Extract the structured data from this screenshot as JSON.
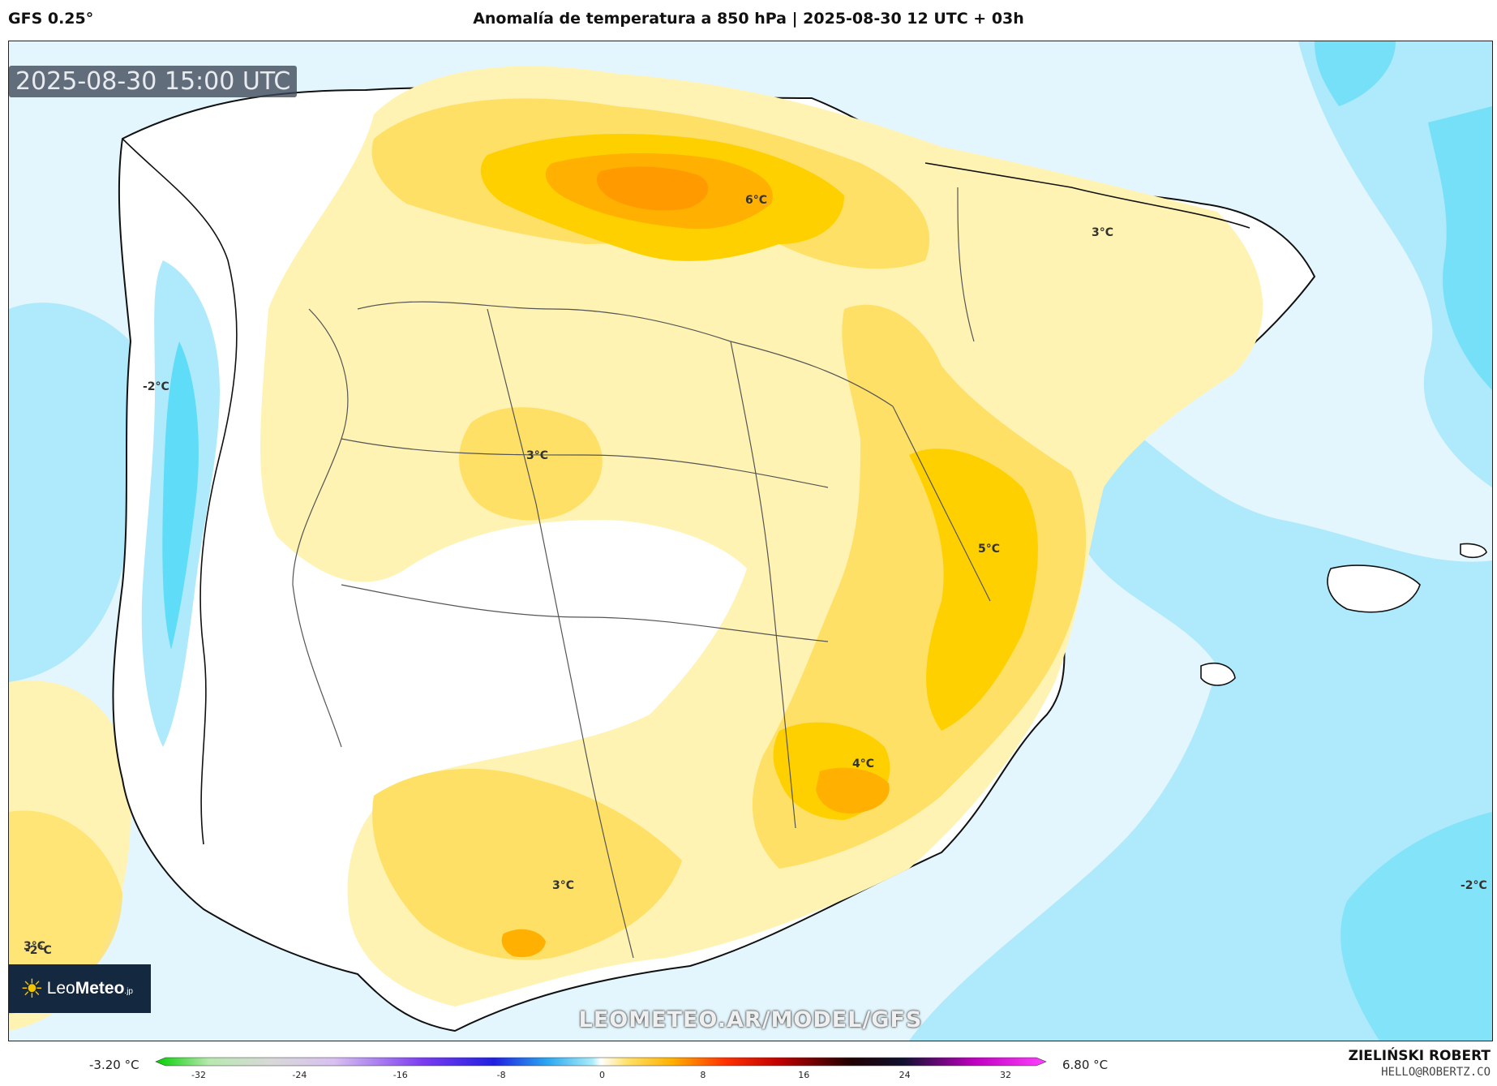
{
  "header": {
    "model": "GFS 0.25°",
    "title": "Anomalía de temperatura a 850 hPa | 2025-08-30 12 UTC + 03h"
  },
  "map": {
    "valid_time": "2025-08-30 15:00 UTC",
    "watermark": "LEOMETEO.AR/MODEL/GFS",
    "logo": {
      "name_plain": "Leo",
      "name_bold": "Meteo",
      "suffix": ".jp"
    },
    "contour_labels": [
      "-2°C",
      "6°C",
      "3°C",
      "-2°C",
      "3°C",
      "5°C",
      "4°C",
      "3°C",
      "3°C",
      "-2°C"
    ]
  },
  "colorbar": {
    "min_label": "-3.20 °C",
    "max_label": "6.80 °C",
    "ticks": [
      "-32",
      "-24",
      "-16",
      "-8",
      "0",
      "8",
      "16",
      "24",
      "32"
    ]
  },
  "author": {
    "name": "ZIELIŃSKI ROBERT",
    "email": "HELLO@ROBERTZ.CO"
  },
  "colors": {
    "sea_cold": "#aeeafb",
    "cold_strong": "#5edcf8",
    "cold_light": "#e4f6fd",
    "warm_light": "#fff3b3",
    "warm_mid": "#ffe066",
    "warm_strong": "#ffd000",
    "hot": "#ffb000",
    "hotter": "#ff9a00"
  }
}
